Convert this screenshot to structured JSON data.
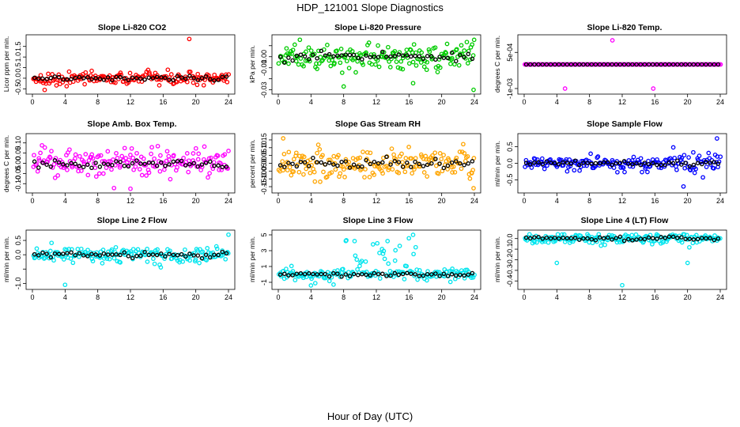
{
  "figure": {
    "title": "HDP_121001  Slope Diagnostics",
    "xlabel": "Hour of Day (UTC)"
  },
  "chart_data": [
    {
      "type": "scatter",
      "title": "Slope Li-820 CO2",
      "ylabel": "Licor ppm per min.",
      "x_ticks": [
        "0",
        "4",
        "8",
        "12",
        "16",
        "20",
        "24"
      ],
      "y_ticks": [
        -0.5,
        0.0,
        0.5,
        1.0,
        1.5
      ],
      "y_tick_labels": [
        "-0.5",
        "0.0",
        "0.5",
        "1.0",
        "1.5"
      ],
      "xlim": [
        0,
        24
      ],
      "ylim": [
        -0.6,
        1.9
      ],
      "color": "#ff0000",
      "noise": 0.15,
      "outliers": [
        {
          "x": 19.2,
          "y": 1.85
        },
        {
          "x": 1.5,
          "y": -0.55
        }
      ]
    },
    {
      "type": "scatter",
      "title": "Slope Li-820 Pressure",
      "ylabel": "kPa per min.",
      "x_ticks": [
        "0",
        "4",
        "8",
        "12",
        "16",
        "20",
        "24"
      ],
      "y_ticks": [
        -0.03,
        -0.02,
        -0.01,
        0.0,
        0.01
      ],
      "y_tick_labels": [
        "-0.03",
        "",
        "-0.01",
        "0.00",
        ""
      ],
      "xlim": [
        0,
        24
      ],
      "ylim": [
        -0.031,
        0.017
      ],
      "color": "#00cc00",
      "noise": 0.006,
      "outliers": [
        {
          "x": 23.9,
          "y": -0.03
        },
        {
          "x": 8.0,
          "y": -0.027
        },
        {
          "x": 16.5,
          "y": -0.024
        }
      ]
    },
    {
      "type": "scatter",
      "title": "Slope Li-820 Temp.",
      "ylabel": "degrees C per min.",
      "x_ticks": [
        "0",
        "4",
        "8",
        "12",
        "16",
        "20",
        "24"
      ],
      "y_ticks": [
        -0.001,
        0.0005
      ],
      "y_tick_labels": [
        "-1e-03",
        "5e-04"
      ],
      "xlim": [
        0,
        24
      ],
      "ylim": [
        -0.0011,
        0.0011
      ],
      "color": "#ff00ff",
      "noise": 0.0,
      "outliers": [
        {
          "x": 10.8,
          "y": 0.001
        },
        {
          "x": 5.0,
          "y": -0.001
        },
        {
          "x": 15.8,
          "y": -0.001
        }
      ]
    },
    {
      "type": "scatter",
      "title": "Slope Amb. Box Temp.",
      "ylabel": "degrees C per min.",
      "x_ticks": [
        "0",
        "4",
        "8",
        "12",
        "16",
        "20",
        "24"
      ],
      "y_ticks": [
        -0.1,
        -0.05,
        0.0,
        0.05,
        0.1
      ],
      "y_tick_labels": [
        "-0.10",
        "-0.05",
        "0.00",
        "0.05",
        "0.10"
      ],
      "xlim": [
        0,
        24
      ],
      "ylim": [
        -0.13,
        0.13
      ],
      "color": "#ff00ff",
      "noise": 0.035,
      "outliers": [
        {
          "x": 12.0,
          "y": -0.125
        }
      ]
    },
    {
      "type": "scatter",
      "title": "Slope Gas Stream RH",
      "ylabel": "percent per min.",
      "x_ticks": [
        "0",
        "4",
        "8",
        "12",
        "16",
        "20",
        "24"
      ],
      "y_ticks": [
        -0.15,
        -0.1,
        -0.05,
        0.0,
        0.05,
        0.1,
        0.15
      ],
      "y_tick_labels": [
        "-0.15",
        "-0.10",
        "-0.05",
        "0.00",
        "0.05",
        "0.10",
        "0.15"
      ],
      "xlim": [
        0,
        24
      ],
      "ylim": [
        -0.17,
        0.17
      ],
      "color": "#ffa500",
      "noise": 0.05,
      "outliers": [
        {
          "x": 23.9,
          "y": -0.16
        },
        {
          "x": 0.6,
          "y": 0.16
        }
      ]
    },
    {
      "type": "scatter",
      "title": "Slope Sample Flow",
      "ylabel": "ml/min per min.",
      "x_ticks": [
        "0",
        "4",
        "8",
        "12",
        "16",
        "20",
        "24"
      ],
      "y_ticks": [
        -0.5,
        0.0,
        0.5
      ],
      "y_tick_labels": [
        "-0.5",
        "0.0",
        "0.5"
      ],
      "xlim": [
        0,
        24
      ],
      "ylim": [
        -0.8,
        0.8
      ],
      "color": "#0000ff",
      "noise": 0.1,
      "outliers": [
        {
          "x": 23.6,
          "y": 0.75
        },
        {
          "x": 19.5,
          "y": -0.7
        }
      ]
    },
    {
      "type": "scatter",
      "title": "Slope Line 2 Flow",
      "ylabel": "ml/min per min.",
      "x_ticks": [
        "0",
        "4",
        "8",
        "12",
        "16",
        "20",
        "24"
      ],
      "y_ticks": [
        -1.0,
        -0.5,
        0.0,
        0.5
      ],
      "y_tick_labels": [
        "-1.0",
        "",
        "0.0",
        "0.5"
      ],
      "xlim": [
        0,
        24
      ],
      "ylim": [
        -1.1,
        0.75
      ],
      "color": "#00e5ee",
      "noise": 0.15,
      "outliers": [
        {
          "x": 4.0,
          "y": -1.05
        },
        {
          "x": 24.0,
          "y": 0.7
        }
      ]
    },
    {
      "type": "scatter",
      "title": "Slope Line 3 Flow",
      "ylabel": "ml/min per min.",
      "x_ticks": [
        "0",
        "4",
        "8",
        "12",
        "16",
        "20",
        "24"
      ],
      "y_ticks": [
        -1,
        1,
        3,
        5
      ],
      "y_tick_labels": [
        "-1",
        "1",
        "3",
        "5"
      ],
      "xlim": [
        0,
        24
      ],
      "ylim": [
        -1.5,
        5.2
      ],
      "color": "#00e5ee",
      "noise": 0.35,
      "outliers": [
        {
          "x": 16.5,
          "y": 5.0
        },
        {
          "x": 4.0,
          "y": -1.4
        }
      ]
    },
    {
      "type": "scatter",
      "title": "Slope Line 4 (LT) Flow",
      "ylabel": "ml/min per min.",
      "x_ticks": [
        "0",
        "4",
        "8",
        "12",
        "16",
        "20",
        "24"
      ],
      "y_ticks": [
        -0.4,
        -0.3,
        -0.2,
        -0.1,
        0.0
      ],
      "y_tick_labels": [
        "-0.4",
        "-0.3",
        "-0.2",
        "-0.1",
        "0.0"
      ],
      "xlim": [
        0,
        24
      ],
      "ylim": [
        -0.45,
        0.05
      ],
      "color": "#00e5ee",
      "noise": 0.025,
      "outliers": [
        {
          "x": 12.0,
          "y": -0.44
        },
        {
          "x": 4.0,
          "y": -0.23
        },
        {
          "x": 20.0,
          "y": -0.23
        }
      ]
    }
  ]
}
